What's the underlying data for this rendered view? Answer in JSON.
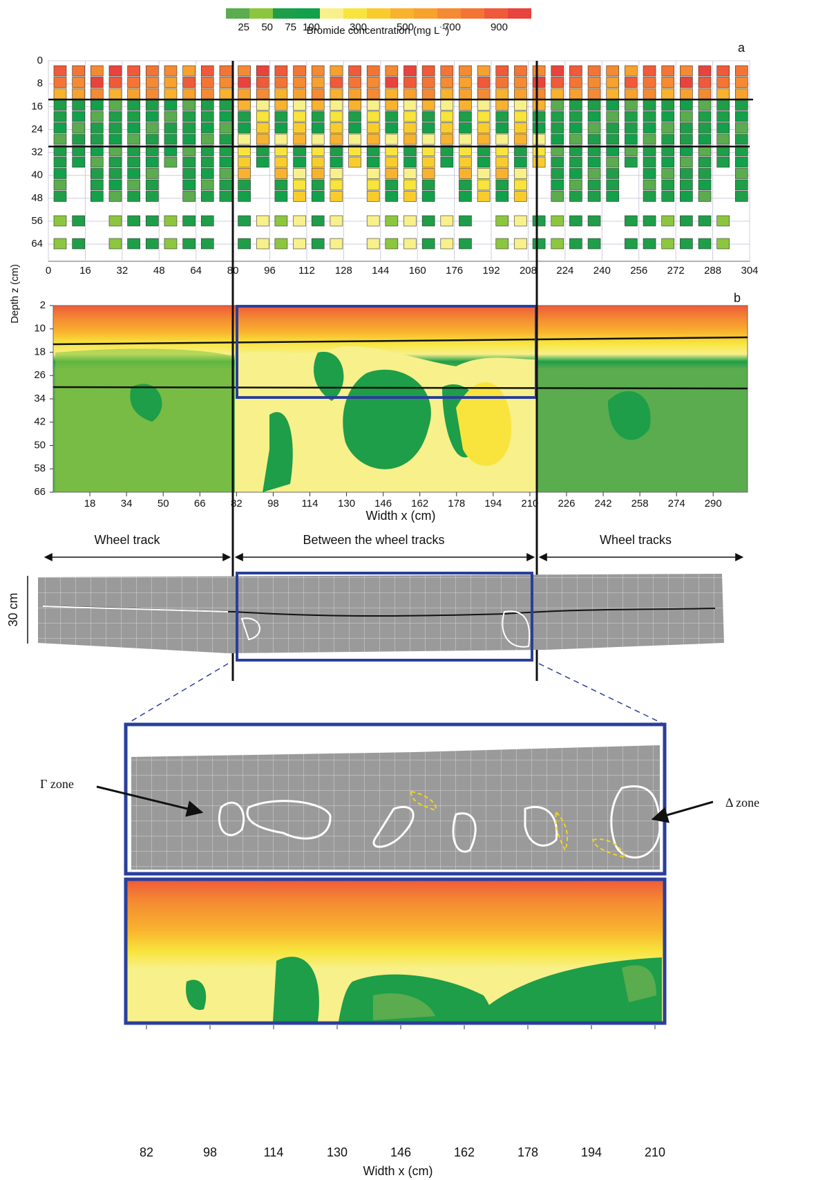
{
  "colorbar": {
    "title": "Bromide concentration (mg L",
    "title_sup": "-1",
    "title_end": ")",
    "ticks": [
      25,
      50,
      75,
      100,
      300,
      500,
      700,
      900
    ],
    "colors": [
      "#5aac4e",
      "#8cc63f",
      "#1e9e48",
      "#12a04a",
      "#f8f08a",
      "#f8e43c",
      "#f9cc2e",
      "#f8b22e",
      "#f7a12f",
      "#f48a33",
      "#f27536",
      "#ee5a3a",
      "#e8433d"
    ]
  },
  "depth_label": "Depth z (cm)",
  "panel_a": {
    "label": "a",
    "xlim": [
      0,
      304
    ],
    "ylim": [
      0,
      70
    ],
    "xticks": [
      0,
      16,
      32,
      48,
      64,
      80,
      96,
      112,
      128,
      144,
      160,
      176,
      192,
      208,
      224,
      240,
      256,
      272,
      288,
      304
    ],
    "yticks": [
      0,
      8,
      16,
      24,
      32,
      40,
      48,
      56,
      64
    ]
  },
  "panel_b": {
    "label": "b",
    "xlim": [
      2,
      305
    ],
    "ylim": [
      2,
      66
    ],
    "xticks": [
      18,
      34,
      50,
      66,
      82,
      98,
      114,
      130,
      146,
      162,
      178,
      194,
      210,
      226,
      242,
      258,
      274,
      290
    ],
    "yticks": [
      2,
      10,
      18,
      26,
      34,
      42,
      50,
      58,
      66
    ],
    "xlabel": "Width x (cm)"
  },
  "zones": [
    "Wheel track",
    "Between the wheel tracks",
    "Wheel tracks"
  ],
  "scale_label": "30 cm",
  "annotations": [
    "Γ zone",
    "Δ zone"
  ],
  "zoom": {
    "xlim": [
      82,
      210
    ],
    "xticks": [
      82,
      98,
      114,
      130,
      146,
      162,
      178,
      194,
      210
    ],
    "xlabel": "Width x (cm)"
  }
}
